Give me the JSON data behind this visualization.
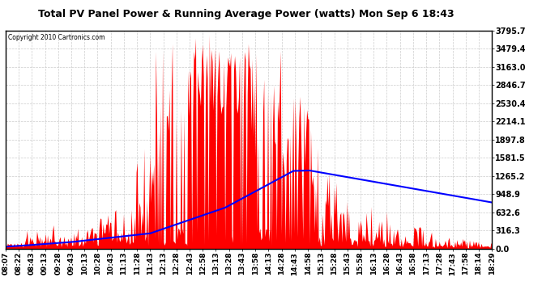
{
  "title": "Total PV Panel Power & Running Average Power (watts) Mon Sep 6 18:43",
  "copyright": "Copyright 2010 Cartronics.com",
  "background_color": "#ffffff",
  "plot_bg_color": "#ffffff",
  "grid_color": "#cccccc",
  "y_min": 0.0,
  "y_max": 3795.7,
  "y_ticks": [
    0.0,
    316.3,
    632.6,
    948.9,
    1265.2,
    1581.5,
    1897.8,
    2214.1,
    2530.4,
    2846.7,
    3163.0,
    3479.4,
    3795.7
  ],
  "fill_color": "#ff0000",
  "line_color": "#0000ff",
  "x_labels": [
    "08:07",
    "08:22",
    "08:43",
    "09:13",
    "09:28",
    "09:43",
    "10:13",
    "10:28",
    "10:43",
    "11:13",
    "11:28",
    "11:43",
    "12:13",
    "12:28",
    "12:43",
    "12:58",
    "13:13",
    "13:28",
    "13:43",
    "13:58",
    "14:13",
    "14:28",
    "14:43",
    "14:58",
    "15:13",
    "15:28",
    "15:43",
    "15:58",
    "16:13",
    "16:28",
    "16:43",
    "16:58",
    "17:13",
    "17:28",
    "17:43",
    "17:58",
    "18:14",
    "18:29"
  ],
  "title_fontsize": 9,
  "tick_fontsize": 6.5,
  "ytick_fontsize": 7
}
